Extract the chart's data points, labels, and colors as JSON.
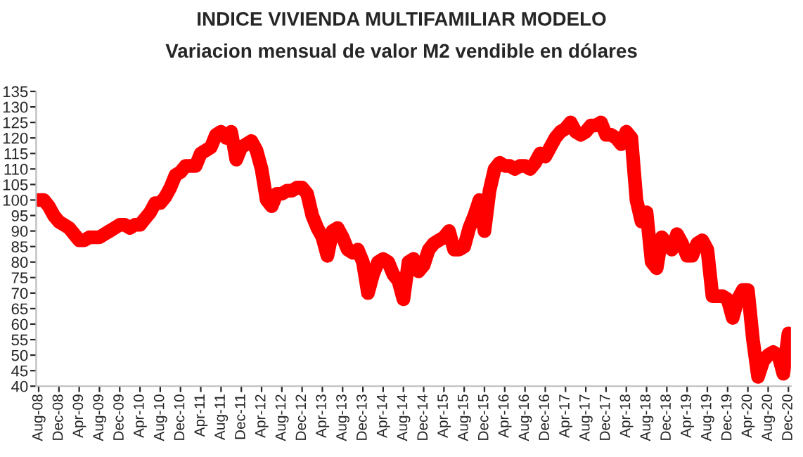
{
  "chart_data": {
    "type": "line",
    "title": "INDICE VIVIENDA MULTIFAMILIAR MODELO",
    "subtitle": "Variacion mensual de valor M2 vendible en dólares",
    "categories": [
      "Aug-08",
      null,
      null,
      null,
      "Dec-08",
      null,
      null,
      null,
      "Apr-09",
      null,
      null,
      null,
      "Aug-09",
      null,
      null,
      null,
      "Dec-09",
      null,
      null,
      null,
      "Apr-10",
      null,
      null,
      null,
      "Aug-10",
      null,
      null,
      null,
      "Dec-10",
      null,
      null,
      null,
      "Apr-11",
      null,
      null,
      null,
      "Aug-11",
      null,
      null,
      null,
      "Dec-11",
      null,
      null,
      null,
      "Apr-12",
      null,
      null,
      null,
      "Aug-12",
      null,
      null,
      null,
      "Dec-12",
      null,
      null,
      null,
      "Apr-13",
      null,
      null,
      null,
      "Aug-13",
      null,
      null,
      null,
      "Dec-13",
      null,
      null,
      null,
      "Apr-14",
      null,
      null,
      null,
      "Aug-14",
      null,
      null,
      null,
      "Dec-14",
      null,
      null,
      null,
      "Apr-15",
      null,
      null,
      null,
      "Aug-15",
      null,
      null,
      null,
      "Dec-15",
      null,
      null,
      null,
      "Apr-16",
      null,
      null,
      null,
      "Aug-16",
      null,
      null,
      null,
      "Dec-16",
      null,
      null,
      null,
      "Apr-17",
      null,
      null,
      null,
      "Aug-17",
      null,
      null,
      null,
      "Dec-17",
      null,
      null,
      null,
      "Apr-18",
      null,
      null,
      null,
      "Aug-18",
      null,
      null,
      null,
      "Dec-18",
      null,
      null,
      null,
      "Apr-19",
      null,
      null,
      null,
      "Aug-19",
      null,
      null,
      null,
      "Dec-19",
      null,
      null,
      null,
      "Apr-20",
      null,
      null,
      null,
      "Aug-20",
      null,
      null,
      null,
      "Dec-20"
    ],
    "series": [
      {
        "color": "#ff0000",
        "values": [
          100,
          100,
          98,
          95,
          93,
          92,
          91,
          89,
          87,
          87,
          88,
          88,
          88,
          89,
          90,
          91,
          92,
          92,
          91,
          92,
          92,
          94,
          96,
          99,
          99,
          101,
          104,
          108,
          109,
          111,
          111,
          111,
          115,
          116,
          117,
          121,
          122,
          120,
          122,
          113,
          117,
          118,
          119,
          116,
          110,
          100,
          98,
          102,
          102,
          103,
          103,
          104,
          104,
          102,
          95,
          91,
          88,
          82,
          90,
          91,
          88,
          84,
          83,
          84,
          80,
          70,
          76,
          80,
          81,
          80,
          76,
          74,
          68,
          80,
          81,
          77,
          79,
          84,
          86,
          87,
          88,
          90,
          84,
          84,
          85,
          91,
          95,
          100,
          90,
          103,
          110,
          112,
          111,
          111,
          110,
          111,
          111,
          110,
          112,
          115,
          114,
          117,
          120,
          122,
          123,
          125,
          122,
          121,
          122,
          124,
          124,
          125,
          121,
          121,
          120,
          118,
          122,
          120,
          100,
          93,
          96,
          80,
          78,
          88,
          86,
          84,
          89,
          86,
          82,
          82,
          86,
          87,
          84,
          69,
          69,
          69,
          68,
          62,
          68,
          71,
          71,
          55,
          43,
          48,
          50,
          51,
          50,
          44,
          57
        ]
      }
    ],
    "ylim": [
      40,
      135
    ],
    "yticks": [
      40,
      45,
      50,
      55,
      60,
      65,
      70,
      75,
      80,
      85,
      90,
      95,
      100,
      105,
      110,
      115,
      120,
      125,
      130,
      135
    ],
    "grid": false,
    "marker": "none",
    "line_style": "solid"
  }
}
